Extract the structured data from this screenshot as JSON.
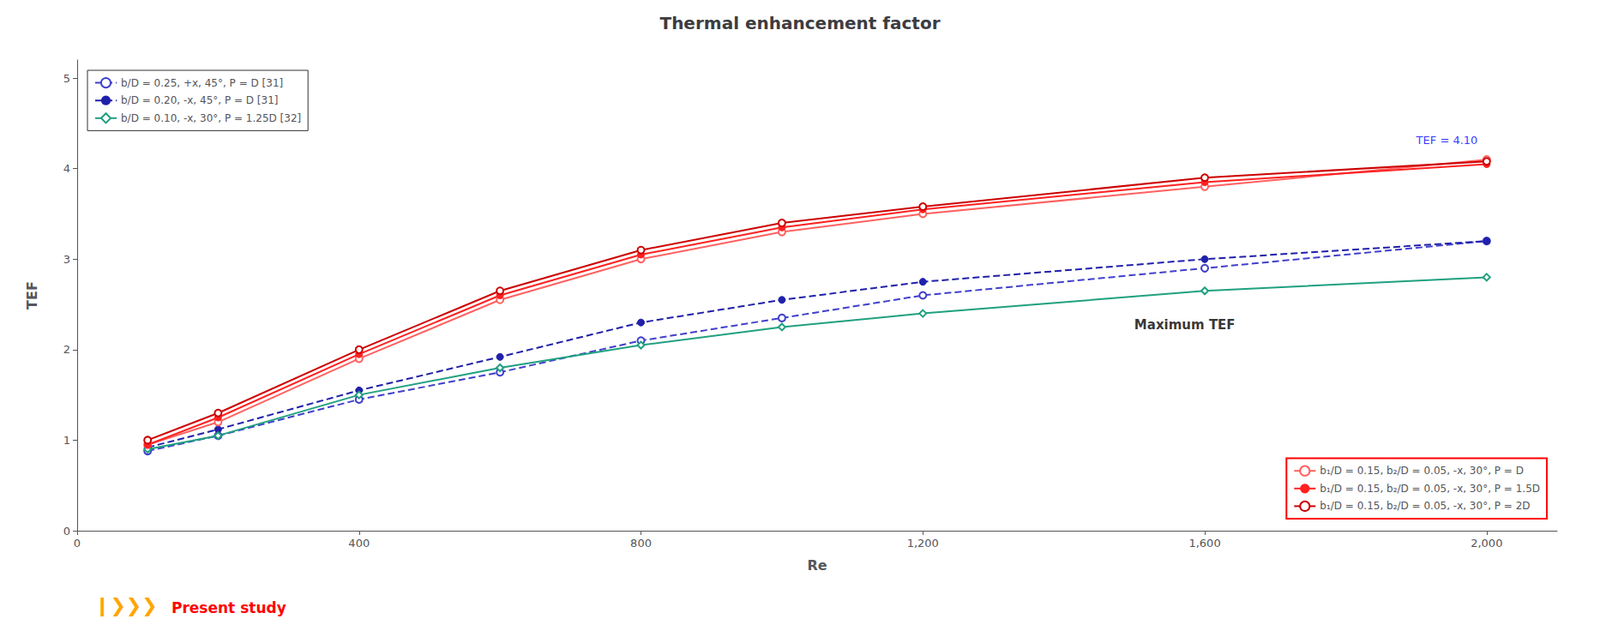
{
  "chart_data": {
    "type": "line",
    "title": "Thermal enhancement factor",
    "x_label": "Re",
    "y_label": "TEF",
    "x": [
      100,
      200,
      400,
      600,
      800,
      1000,
      1200,
      1600,
      2000
    ],
    "xlim": [
      0,
      2100
    ],
    "xticks": [
      0,
      400,
      800,
      1200,
      1600,
      2000
    ],
    "ylim": [
      0,
      5.2
    ],
    "yticks": [
      0,
      1,
      2,
      3,
      4,
      5
    ],
    "grid": false,
    "legend": "upper left",
    "series": [
      {
        "name": "b/D = 0.25, +x, 45°, P = D [31]",
        "color": "#4040cc",
        "line_style": "dashed",
        "marker": "open_circle",
        "values": [
          0.88,
          1.05,
          1.45,
          1.75,
          2.1,
          2.35,
          2.6,
          2.9,
          3.2
        ]
      },
      {
        "name": "b/D = 0.20, -x, 45°, P = D [31]",
        "color": "#2020aa",
        "line_style": "dashed",
        "marker": "circle",
        "values": [
          0.92,
          1.12,
          1.55,
          1.92,
          2.3,
          2.55,
          2.75,
          3.0,
          3.2
        ]
      },
      {
        "name": "b/D = 0.10, -x, 30°, P = 1.25D [32]",
        "color": "#20a080",
        "line_style": "solid",
        "marker": "open_diamond",
        "values": [
          0.9,
          1.05,
          1.5,
          1.8,
          2.05,
          2.25,
          2.4,
          2.65,
          2.8
        ]
      },
      {
        "name": "b₁/D = 0.15, b₂/D = 0.05, -x, 30°, P = D",
        "color": "#ff6060",
        "line_style": "solid",
        "marker": "open_circle",
        "values": [
          0.95,
          1.2,
          1.9,
          2.55,
          3.0,
          3.3,
          3.5,
          3.8,
          4.1
        ]
      },
      {
        "name": "b₁/D = 0.15, b₂/D = 0.05, -x, 30°, P = 1.5D",
        "color": "#ff2020",
        "line_style": "solid",
        "marker": "circle",
        "values": [
          0.95,
          1.25,
          1.95,
          2.6,
          3.05,
          3.35,
          3.55,
          3.85,
          4.05
        ]
      },
      {
        "name": "b₁/D = 0.15, b₂/D = 0.05, -x, 30°, P = 2D",
        "color": "#cc0000",
        "line_style": "solid",
        "marker": "open_circle",
        "values": [
          1.0,
          1.3,
          2.0,
          2.65,
          3.1,
          3.4,
          3.58,
          3.9,
          4.08
        ]
      }
    ],
    "annotations": [
      {
        "text": "Maximum TEF",
        "x": 1500,
        "y": 2.2,
        "color": "#000000"
      },
      {
        "text": "TEF = 4.10",
        "x": 1900,
        "y": 4.25,
        "color": "blue"
      },
      {
        "text": "❙❯❯❯",
        "color": "orange"
      },
      {
        "text": "Present study",
        "color": "red"
      }
    ]
  }
}
